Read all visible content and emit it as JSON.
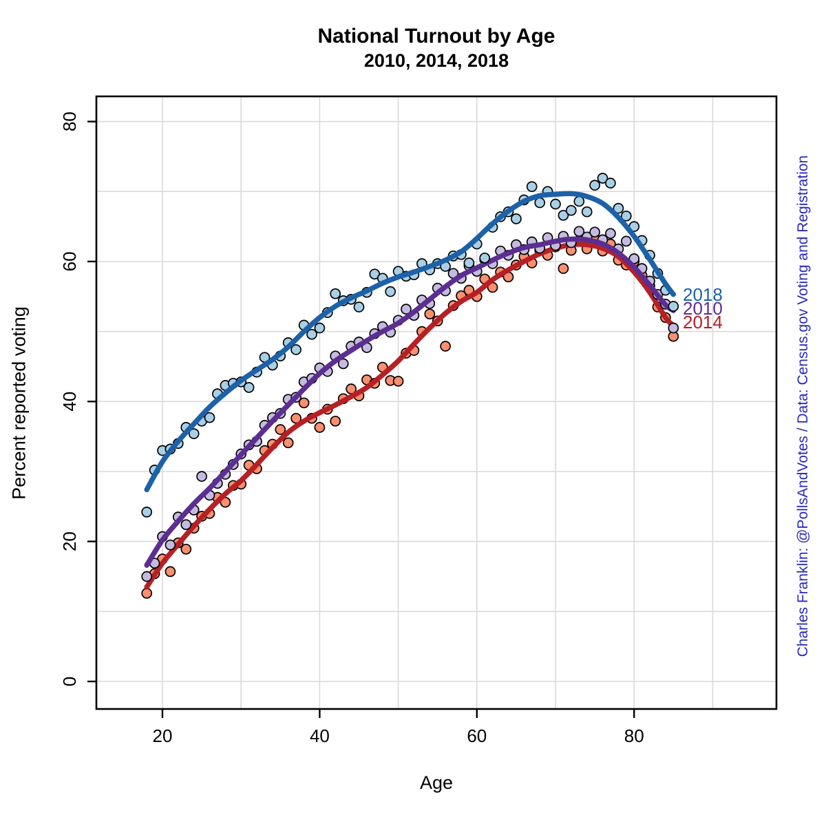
{
  "title": "National Turnout by Age",
  "subtitle": "2010, 2014, 2018",
  "caption": "Charles Franklin: @PollsAndVotes / Data: Census.gov Voting and Registration",
  "caption_color": "#2727c3",
  "x_axis": {
    "label": "Age",
    "ticks": [
      20,
      40,
      60,
      80
    ],
    "grid": [
      20,
      30,
      40,
      50,
      60,
      70,
      80,
      90
    ],
    "range": [
      11.6,
      98.1
    ]
  },
  "y_axis": {
    "label": "Percent reported voting",
    "ticks": [
      0,
      20,
      40,
      60,
      80
    ],
    "grid": [
      0,
      10,
      20,
      30,
      40,
      50,
      60,
      70,
      80
    ],
    "range": [
      -3.9,
      83.6
    ]
  },
  "grid_color": "#d9d9d9",
  "axis_color": "#000000",
  "chart_data": {
    "type": "scatter",
    "note": "scatter points with loess-style smooth trend lines, one per election year",
    "x_field": "age",
    "ages": [
      18,
      19,
      20,
      21,
      22,
      23,
      24,
      25,
      26,
      27,
      28,
      29,
      30,
      31,
      32,
      33,
      34,
      35,
      36,
      37,
      38,
      39,
      40,
      41,
      42,
      43,
      44,
      45,
      46,
      47,
      48,
      49,
      50,
      51,
      52,
      53,
      54,
      55,
      56,
      57,
      58,
      59,
      60,
      61,
      62,
      63,
      64,
      65,
      66,
      67,
      68,
      69,
      70,
      71,
      72,
      73,
      74,
      75,
      76,
      77,
      78,
      79,
      80,
      81,
      82,
      83,
      84,
      85
    ],
    "smooth_ages": [
      18,
      20,
      22,
      24,
      26,
      28,
      30,
      32,
      34,
      36,
      38,
      40,
      42,
      44,
      46,
      48,
      50,
      52,
      54,
      56,
      58,
      60,
      62,
      64,
      66,
      68,
      70,
      72,
      74,
      76,
      78,
      80,
      82,
      84,
      85
    ],
    "xlim": [
      11.6,
      98.1
    ],
    "ylim": [
      -3.9,
      83.6
    ],
    "legend_position": "right-end-of-lines",
    "series": [
      {
        "name": "2018",
        "line_color": "#1d61a8",
        "point_color": "#a9cfe5",
        "label_pct": 55.3,
        "values": [
          24.2,
          30.2,
          33.0,
          33.2,
          34.0,
          36.3,
          35.4,
          37.2,
          37.7,
          41.1,
          42.3,
          42.6,
          42.8,
          42.0,
          44.2,
          46.3,
          45.2,
          46.5,
          48.4,
          47.4,
          50.9,
          49.6,
          50.5,
          52.7,
          55.4,
          54.4,
          54.6,
          53.5,
          55.6,
          58.2,
          57.6,
          55.7,
          58.6,
          57.9,
          58.1,
          59.7,
          58.8,
          59.7,
          59.3,
          60.8,
          61.0,
          59.8,
          62.5,
          60.5,
          64.9,
          66.4,
          67.1,
          66.1,
          68.8,
          70.7,
          68.4,
          70.0,
          68.2,
          66.6,
          67.3,
          68.6,
          67.1,
          70.9,
          71.9,
          71.2,
          67.6,
          66.5,
          65.0,
          63.0,
          60.9,
          58.3,
          55.9,
          53.6
        ],
        "smooth_values": [
          27.4,
          31.4,
          34.3,
          36.8,
          39.2,
          41.2,
          43.0,
          44.5,
          46.0,
          47.8,
          50.0,
          52.0,
          53.6,
          54.8,
          55.8,
          56.9,
          57.8,
          58.5,
          59.3,
          60.2,
          61.4,
          63.3,
          65.4,
          67.2,
          68.6,
          69.4,
          69.6,
          69.7,
          69.3,
          68.3,
          66.3,
          63.6,
          60.3,
          56.8,
          55.3
        ]
      },
      {
        "name": "2010",
        "line_color": "#5c2e91",
        "point_color": "#c4bbdf",
        "label_pct": 53.3,
        "values": [
          15.0,
          16.9,
          20.7,
          19.5,
          23.5,
          22.4,
          24.5,
          29.3,
          26.6,
          28.3,
          29.6,
          31.0,
          32.5,
          33.8,
          34.3,
          36.6,
          37.7,
          38.3,
          40.3,
          40.6,
          42.8,
          43.3,
          44.8,
          44.3,
          46.5,
          45.4,
          47.9,
          48.5,
          47.7,
          49.7,
          50.7,
          49.9,
          51.6,
          53.2,
          52.3,
          54.5,
          54.0,
          56.2,
          55.8,
          58.3,
          57.6,
          59.4,
          58.6,
          60.3,
          59.7,
          61.5,
          60.9,
          62.4,
          61.7,
          62.8,
          61.9,
          63.4,
          62.3,
          63.6,
          62.7,
          64.3,
          63.5,
          64.2,
          63.1,
          64.0,
          61.8,
          62.9,
          60.4,
          59.0,
          57.2,
          55.3,
          53.9,
          50.5
        ],
        "smooth_values": [
          16.6,
          20.2,
          22.9,
          25.4,
          27.6,
          30.0,
          32.4,
          34.8,
          37.2,
          39.5,
          41.8,
          44.0,
          45.8,
          47.3,
          48.7,
          50.0,
          51.2,
          52.8,
          54.6,
          56.4,
          58.0,
          59.1,
          60.2,
          61.2,
          62.0,
          62.4,
          62.9,
          63.2,
          63.1,
          62.5,
          61.2,
          59.2,
          56.6,
          53.8,
          53.0
        ]
      },
      {
        "name": "2014",
        "line_color": "#b62025",
        "point_color": "#fb8f6f",
        "label_pct": 51.3,
        "values": [
          12.6,
          15.4,
          17.5,
          15.7,
          19.8,
          18.9,
          21.9,
          23.6,
          24.0,
          26.3,
          25.6,
          28.0,
          28.2,
          30.9,
          30.4,
          33.0,
          33.9,
          36.0,
          34.1,
          37.6,
          39.8,
          37.6,
          36.3,
          38.9,
          37.2,
          40.4,
          41.8,
          40.8,
          43.1,
          42.6,
          44.9,
          43.0,
          42.9,
          46.9,
          47.3,
          50.0,
          52.5,
          51.5,
          47.9,
          53.7,
          55.1,
          55.9,
          55.0,
          57.5,
          56.3,
          58.5,
          57.8,
          59.5,
          60.7,
          59.8,
          61.6,
          60.9,
          62.1,
          59.0,
          61.6,
          63.0,
          61.8,
          63.3,
          61.5,
          62.5,
          60.2,
          59.5,
          60.0,
          58.0,
          56.5,
          53.5,
          52.0,
          49.3
        ],
        "smooth_values": [
          13.5,
          16.9,
          19.6,
          22.2,
          24.6,
          26.8,
          28.7,
          31.0,
          33.4,
          35.6,
          37.2,
          38.4,
          39.5,
          40.7,
          42.0,
          43.8,
          45.8,
          48.2,
          50.5,
          52.6,
          54.3,
          55.6,
          57.4,
          58.8,
          60.0,
          61.1,
          61.9,
          62.4,
          62.4,
          61.9,
          60.7,
          58.5,
          55.6,
          52.0,
          50.8
        ]
      }
    ]
  }
}
